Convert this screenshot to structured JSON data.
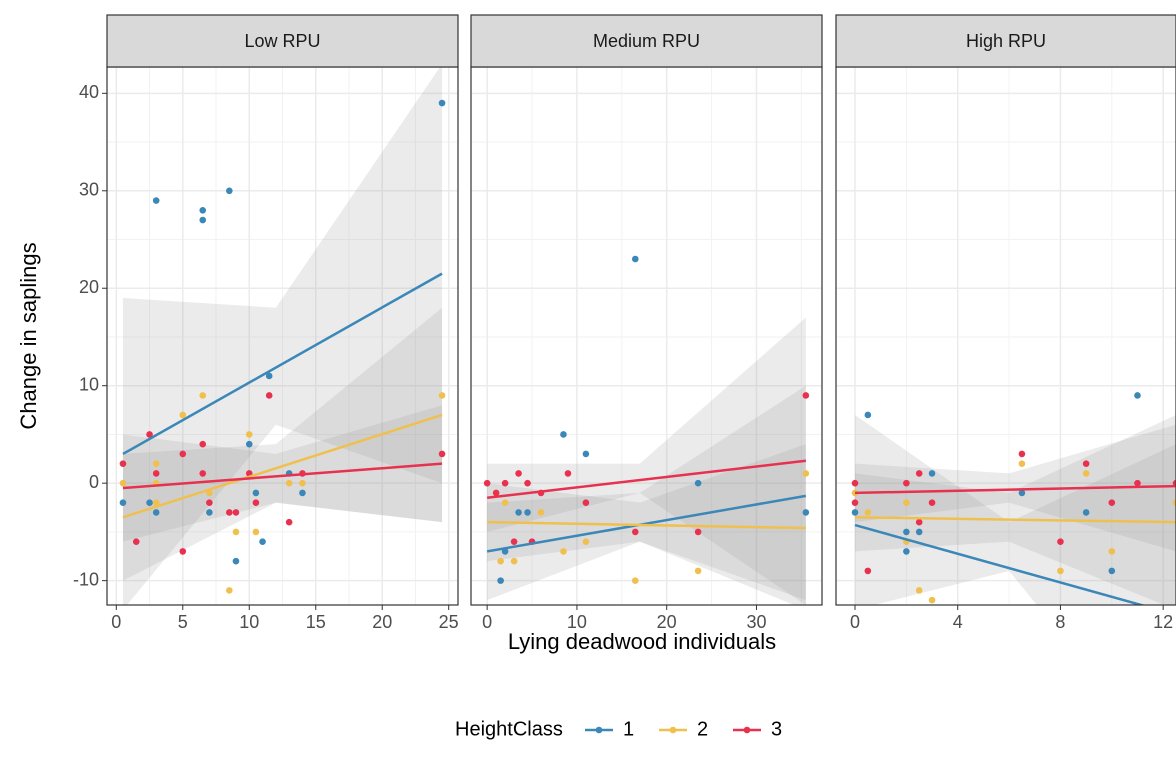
{
  "y_label": "Change in saplings",
  "x_label": "Lying deadwood individuals",
  "legend_title": "HeightClass",
  "chart_data": [
    {
      "type": "scatter",
      "title": "Low RPU",
      "xlim": [
        -0.7,
        25.7
      ],
      "xticks": [
        0,
        5,
        10,
        15,
        20,
        25
      ],
      "ylim": [
        -12.5,
        42.7
      ],
      "yticks": [
        -10,
        0,
        10,
        20,
        30,
        40
      ],
      "grid": true,
      "series": [
        {
          "name": "1",
          "color": "#3a87b8",
          "x": [
            0.5,
            2.5,
            3,
            3,
            6.5,
            6.5,
            7,
            8.5,
            9,
            10,
            10.5,
            11,
            11.5,
            13,
            14,
            24.5
          ],
          "values": [
            -2,
            -2,
            29,
            -3,
            28,
            27,
            -3,
            30,
            -8,
            4,
            -1,
            -6,
            11,
            1,
            -1,
            39
          ],
          "fit": {
            "x": [
              0.5,
              24.5
            ],
            "values": [
              3,
              21.5
            ]
          },
          "band": {
            "x": [
              0.5,
              12,
              24.5
            ],
            "lower": [
              -13,
              6,
              0
            ],
            "upper": [
              19,
              18,
              43
            ]
          }
        },
        {
          "name": "2",
          "color": "#efc04d",
          "x": [
            0.5,
            3,
            3,
            3,
            5,
            6.5,
            7,
            8.5,
            9,
            10,
            10.5,
            13,
            14,
            24.5
          ],
          "values": [
            0,
            2,
            0,
            -2,
            7,
            9,
            -1,
            -11,
            -5,
            5,
            -5,
            0,
            0,
            9
          ],
          "fit": {
            "x": [
              0.5,
              24.5
            ],
            "values": [
              -3.5,
              7
            ]
          },
          "band": {
            "x": [
              0.5,
              12,
              24.5
            ],
            "lower": [
              -10,
              -2,
              -4
            ],
            "upper": [
              3,
              4,
              18
            ]
          }
        },
        {
          "name": "3",
          "color": "#e8304f",
          "x": [
            0.5,
            1.5,
            2.5,
            3,
            5,
            5,
            6.5,
            6.5,
            7,
            8.5,
            9,
            10,
            10.5,
            11.5,
            13,
            14,
            24.5
          ],
          "values": [
            2,
            -6,
            5,
            1,
            3,
            -7,
            4,
            1,
            -2,
            -3,
            -3,
            1,
            -2,
            9,
            -4,
            1,
            3
          ],
          "fit": {
            "x": [
              0.5,
              24.5
            ],
            "values": [
              -0.5,
              2
            ]
          },
          "band": {
            "x": [
              0.5,
              12,
              24.5
            ],
            "lower": [
              -6,
              -2,
              -4
            ],
            "upper": [
              5,
              3,
              8
            ]
          }
        }
      ]
    },
    {
      "type": "scatter",
      "title": "Medium RPU",
      "xlim": [
        -1.8,
        37.3
      ],
      "xticks": [
        0,
        10,
        20,
        30
      ],
      "ylim": [
        -12.5,
        42.7
      ],
      "yticks": [
        -10,
        0,
        10,
        20,
        30,
        40
      ],
      "grid": true,
      "series": [
        {
          "name": "1",
          "color": "#3a87b8",
          "x": [
            1.5,
            2,
            3.5,
            4.5,
            8.5,
            11,
            16.5,
            23.5,
            35.5
          ],
          "values": [
            -10,
            -7,
            -3,
            -3,
            5,
            3,
            23,
            0,
            -3
          ],
          "fit": {
            "x": [
              0,
              35.5
            ],
            "values": [
              -7,
              -1.3
            ]
          },
          "band": {
            "x": [
              0,
              17,
              35.5
            ],
            "lower": [
              -12,
              -6,
              -12
            ],
            "upper": [
              -2,
              -1,
              10
            ]
          }
        },
        {
          "name": "2",
          "color": "#efc04d",
          "x": [
            1,
            1.5,
            2,
            3,
            6,
            8.5,
            11,
            16.5,
            23.5,
            35.5
          ],
          "values": [
            -1,
            -8,
            -2,
            -8,
            -3,
            -7,
            -6,
            -10,
            -9,
            1
          ],
          "fit": {
            "x": [
              0,
              35.5
            ],
            "values": [
              -4,
              -4.6
            ]
          },
          "band": {
            "x": [
              0,
              17,
              35.5
            ],
            "lower": [
              -8,
              -6,
              -13
            ],
            "upper": [
              0,
              -2,
              4
            ]
          }
        },
        {
          "name": "3",
          "color": "#e8304f",
          "x": [
            0,
            1,
            2,
            3,
            3.5,
            4.5,
            5,
            6,
            9,
            11,
            16.5,
            23.5,
            35.5
          ],
          "values": [
            0,
            -1,
            0,
            -6,
            1,
            0,
            -6,
            -1,
            1,
            -2,
            -5,
            -5,
            9
          ],
          "fit": {
            "x": [
              0,
              35.5
            ],
            "values": [
              -1.5,
              2.3
            ]
          },
          "band": {
            "x": [
              0,
              17,
              35.5
            ],
            "lower": [
              -5,
              -1,
              -12.5
            ],
            "upper": [
              2,
              2,
              17
            ]
          }
        }
      ]
    },
    {
      "type": "scatter",
      "title": "High RPU",
      "xlim": [
        -0.74,
        12.5
      ],
      "xticks": [
        0,
        4,
        8,
        12
      ],
      "ylim": [
        -12.5,
        42.7
      ],
      "yticks": [
        -10,
        0,
        10,
        20,
        30,
        40
      ],
      "grid": true,
      "series": [
        {
          "name": "1",
          "color": "#3a87b8",
          "x": [
            0,
            0.5,
            2,
            2,
            2.5,
            3,
            6.5,
            9,
            10,
            11
          ],
          "values": [
            -3,
            7,
            -5,
            -7,
            -5,
            1,
            -1,
            -3,
            -9,
            9
          ],
          "fit": {
            "x": [
              0,
              12.5
            ],
            "values": [
              -4.3,
              -13.5
            ]
          },
          "band": {
            "x": [
              0,
              6,
              12.5
            ],
            "lower": [
              -13,
              -9,
              -30
            ],
            "upper": [
              7,
              -4,
              4
            ]
          }
        },
        {
          "name": "2",
          "color": "#efc04d",
          "x": [
            0,
            0.5,
            2,
            2,
            2.5,
            3,
            6.5,
            8,
            9,
            10,
            12.5
          ],
          "values": [
            -1,
            -3,
            -2,
            -6,
            -11,
            -12,
            2,
            -9,
            1,
            -7,
            -2
          ],
          "fit": {
            "x": [
              0,
              12.5
            ],
            "values": [
              -3.5,
              -4
            ]
          },
          "band": {
            "x": [
              0,
              6,
              12.5
            ],
            "lower": [
              -7,
              -6,
              -13
            ],
            "upper": [
              1,
              -1,
              7
            ]
          }
        },
        {
          "name": "3",
          "color": "#e8304f",
          "x": [
            0,
            0,
            0.5,
            2,
            2.5,
            2.5,
            3,
            6.5,
            8,
            9,
            10,
            11,
            12.5
          ],
          "values": [
            0,
            -2,
            -9,
            0,
            -4,
            1,
            -2,
            3,
            -6,
            2,
            -2,
            0,
            0
          ],
          "fit": {
            "x": [
              0,
              12.5
            ],
            "values": [
              -1,
              -0.3
            ]
          },
          "band": {
            "x": [
              0,
              6,
              12.5
            ],
            "lower": [
              -4,
              -2,
              -7
            ],
            "upper": [
              2,
              1,
              6
            ]
          }
        }
      ]
    }
  ]
}
